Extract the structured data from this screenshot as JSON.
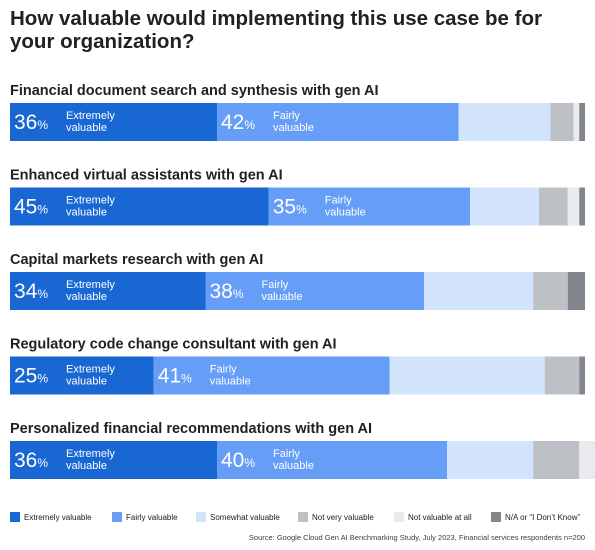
{
  "chart_data": {
    "type": "bar",
    "orientation": "horizontal-stacked-100",
    "title": "How valuable would implementing this use case be for your organization?",
    "categories": [
      "Financial document search and synthesis with gen AI",
      "Enhanced virtual assistants with gen AI",
      "Capital markets research with gen AI",
      "Regulatory code change consultant with gen AI",
      "Personalized financial recommendations with gen AI"
    ],
    "series": [
      {
        "name": "Extremely valuable",
        "color": "#1967d2",
        "values": [
          36,
          45,
          34,
          25,
          36
        ],
        "segment_label": "Extremely valuable",
        "labeled": true
      },
      {
        "name": "Fairly valuable",
        "color": "#669df6",
        "values": [
          42,
          35,
          38,
          41,
          40
        ],
        "segment_label": "Fairly valuable",
        "labeled": true
      },
      {
        "name": "Somewhat valuable",
        "color": "#d2e3fc",
        "values": [
          16,
          12,
          19,
          27,
          15
        ],
        "labeled": false
      },
      {
        "name": "Not very valuable",
        "color": "#bdc1c6",
        "values": [
          4,
          5,
          6,
          6,
          8
        ],
        "labeled": false
      },
      {
        "name": "Not valuable at all",
        "color": "#e8eaed",
        "values": [
          1,
          2,
          0,
          0,
          3
        ],
        "labeled": false
      },
      {
        "name": "N/A or “I Don’t Know”",
        "color": "#80868b",
        "values": [
          1,
          1,
          3,
          1,
          1
        ],
        "labeled": false
      }
    ],
    "pct_symbol": "%",
    "xlim": [
      0,
      100
    ],
    "legend_position": "bottom",
    "grid": false
  },
  "source": "Source: Google Cloud Gen AI Benchmarking Study, July 2023, Financial services respondents n=200"
}
